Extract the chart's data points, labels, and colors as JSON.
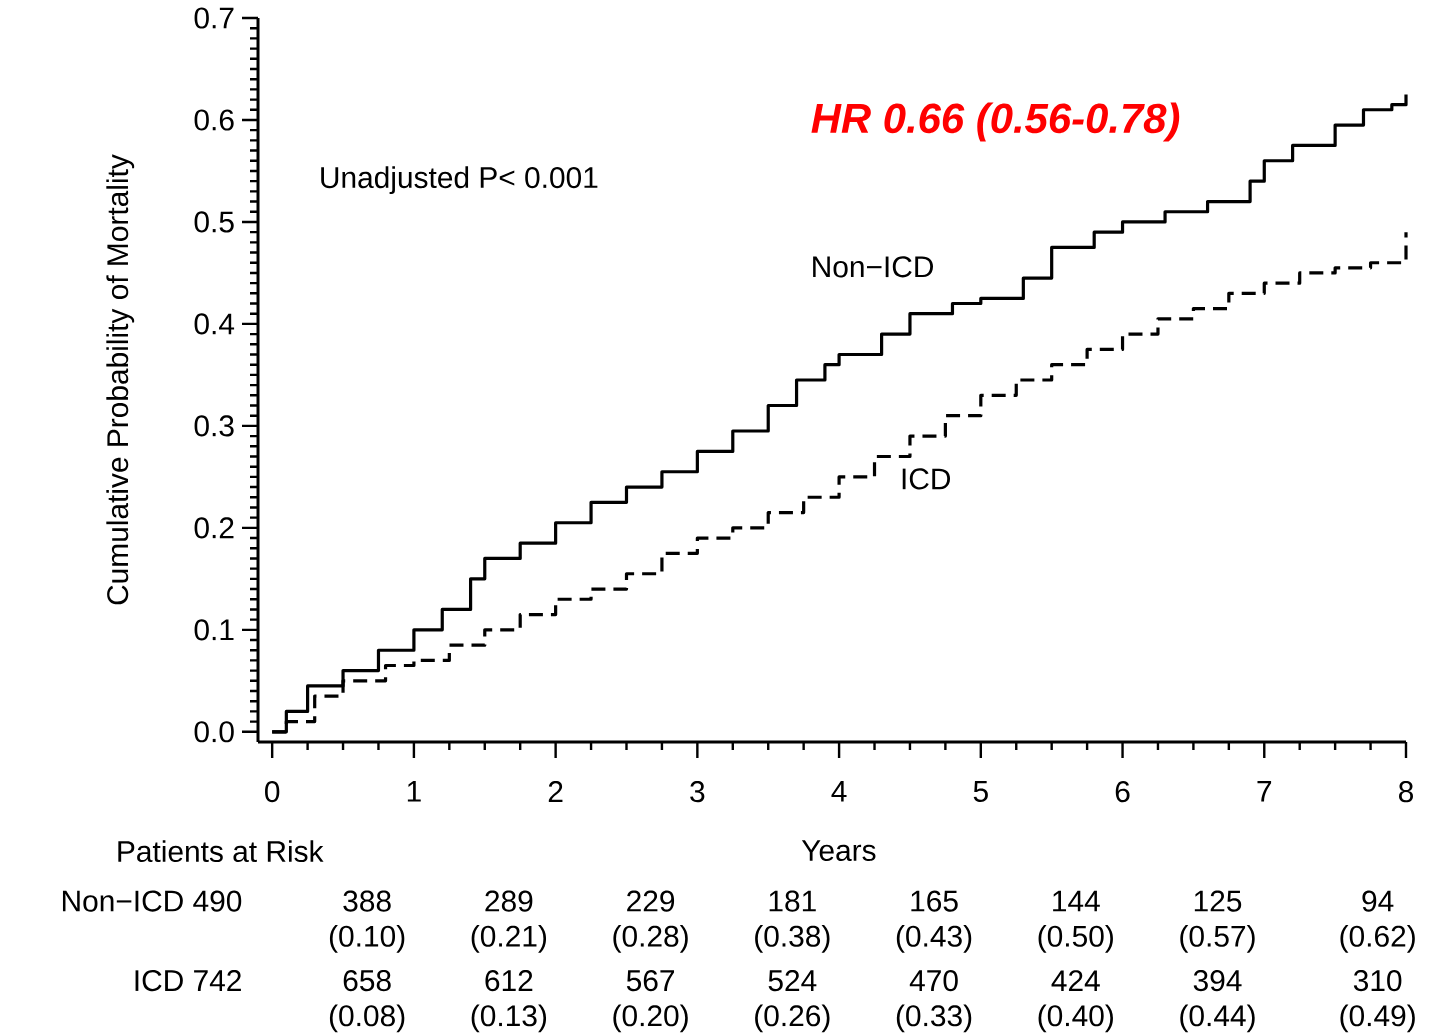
{
  "chart_data": {
    "type": "step",
    "xlabel": "Years",
    "ylabel": "Cumulative Probability of Mortality",
    "xlim": [
      -0.1,
      8
    ],
    "ylim": [
      -0.01,
      0.7
    ],
    "xticks": [
      0,
      1,
      2,
      3,
      4,
      5,
      6,
      7,
      8
    ],
    "yticks": [
      {
        "value": 0,
        "label": "0.0"
      },
      0.1,
      0.2,
      0.3,
      0.4,
      0.5,
      0.6,
      0.7
    ],
    "grid": false,
    "legend": false,
    "series": [
      {
        "name": "Non−ICD",
        "color": "#000000",
        "line_style": "solid",
        "x": [
          0,
          0.1,
          0.25,
          0.5,
          0.75,
          1,
          1.2,
          1.4,
          1.5,
          1.75,
          2,
          2.25,
          2.5,
          2.75,
          3,
          3.25,
          3.5,
          3.7,
          3.9,
          4,
          4.3,
          4.5,
          4.8,
          5,
          5.3,
          5.5,
          5.8,
          6,
          6.3,
          6.6,
          6.9,
          7,
          7.2,
          7.5,
          7.7,
          7.9,
          8
        ],
        "values": [
          0,
          0.02,
          0.045,
          0.06,
          0.08,
          0.1,
          0.12,
          0.15,
          0.17,
          0.185,
          0.205,
          0.225,
          0.24,
          0.255,
          0.275,
          0.295,
          0.32,
          0.345,
          0.36,
          0.37,
          0.39,
          0.41,
          0.42,
          0.425,
          0.445,
          0.475,
          0.49,
          0.5,
          0.51,
          0.52,
          0.54,
          0.56,
          0.575,
          0.595,
          0.61,
          0.615,
          0.625
        ]
      },
      {
        "name": "ICD",
        "color": "#000000",
        "line_style": "dashed",
        "x": [
          0,
          0.1,
          0.3,
          0.5,
          0.8,
          1,
          1.25,
          1.5,
          1.75,
          2,
          2.25,
          2.5,
          2.75,
          3,
          3.25,
          3.5,
          3.75,
          4,
          4.25,
          4.5,
          4.75,
          5,
          5.25,
          5.5,
          5.75,
          6,
          6.25,
          6.5,
          6.75,
          7,
          7.25,
          7.5,
          7.75,
          8
        ],
        "values": [
          0,
          0.01,
          0.035,
          0.05,
          0.065,
          0.07,
          0.085,
          0.1,
          0.115,
          0.13,
          0.14,
          0.155,
          0.175,
          0.19,
          0.2,
          0.215,
          0.23,
          0.25,
          0.27,
          0.29,
          0.31,
          0.33,
          0.345,
          0.36,
          0.375,
          0.39,
          0.405,
          0.415,
          0.43,
          0.44,
          0.45,
          0.455,
          0.46,
          0.49
        ]
      }
    ],
    "annotations": [
      "Unadjusted P< 0.001",
      "HR 0.66 (0.56-0.78)",
      "Patients at Risk",
      "Non−ICD 490",
      "ICD 742",
      "388",
      "289",
      "229",
      "181",
      "165",
      "144",
      "125",
      "94",
      "(0.10)",
      "(0.21)",
      "(0.28)",
      "(0.38)",
      "(0.43)",
      "(0.50)",
      "(0.57)",
      "(0.62)",
      "658",
      "612",
      "567",
      "524",
      "470",
      "424",
      "394",
      "310",
      "(0.08)",
      "(0.13)",
      "(0.20)",
      "(0.26)",
      "(0.33)",
      "(0.40)",
      "(0.44)",
      "(0.49)"
    ]
  }
}
